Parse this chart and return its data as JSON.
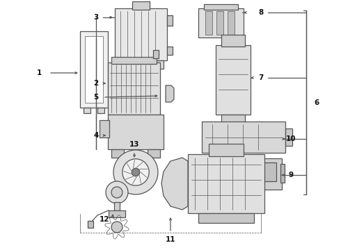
{
  "bg_color": "#ffffff",
  "line_color": "#555555",
  "fig_width": 4.9,
  "fig_height": 3.6,
  "dpi": 100,
  "label_fs": 7.5,
  "lw_main": 0.9,
  "lw_detail": 0.5,
  "part_color": "#cccccc",
  "dark_color": "#888888",
  "label_color": "#111111"
}
